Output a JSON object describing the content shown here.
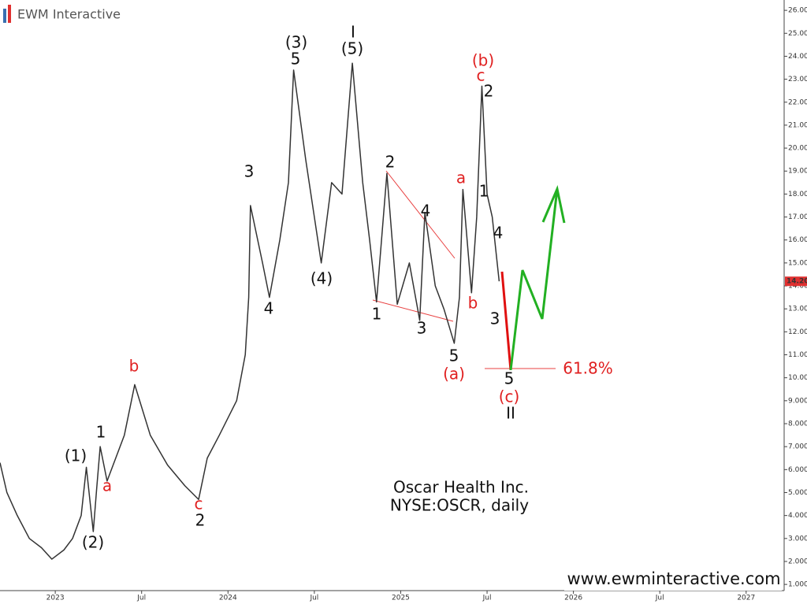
{
  "brand": "EWM Interactive",
  "chart_data": {
    "type": "line",
    "title": "Oscar Health Inc.",
    "subtitle": "NYSE:OSCR, daily",
    "source": "www.ewminteractive.com",
    "x": [
      2022.68,
      2022.72,
      2022.78,
      2022.85,
      2022.92,
      2022.98,
      2023.05,
      2023.1,
      2023.15,
      2023.18,
      2023.22,
      2023.24,
      2023.26,
      2023.3,
      2023.4,
      2023.46,
      2023.55,
      2023.65,
      2023.75,
      2023.83,
      2023.88,
      2023.95,
      2024.05,
      2024.1,
      2024.12,
      2024.13,
      2024.2,
      2024.24,
      2024.3,
      2024.35,
      2024.38,
      2024.45,
      2024.5,
      2024.54,
      2024.6,
      2024.66,
      2024.72,
      2024.78,
      2024.82,
      2024.86,
      2024.92,
      2024.98,
      2025.05,
      2025.11,
      2025.14,
      2025.2,
      2025.25,
      2025.31,
      2025.34,
      2025.36,
      2025.41,
      2025.44,
      2025.47,
      2025.5,
      2025.53,
      2025.57
    ],
    "values": [
      6.3,
      5.0,
      4.0,
      3.0,
      2.6,
      2.1,
      2.5,
      3.0,
      4.0,
      6.1,
      3.3,
      5.2,
      7.0,
      5.5,
      7.5,
      9.7,
      7.5,
      6.2,
      5.3,
      4.7,
      6.5,
      7.5,
      9.0,
      11.0,
      13.5,
      17.5,
      15.0,
      13.5,
      16.0,
      18.5,
      23.4,
      19.5,
      17.0,
      15.0,
      18.5,
      18.0,
      23.7,
      18.5,
      16.0,
      13.3,
      18.9,
      13.2,
      15.0,
      12.5,
      17.2,
      14.0,
      13.0,
      11.5,
      13.5,
      18.2,
      13.7,
      17.0,
      22.7,
      18.0,
      17.0,
      14.2
    ],
    "color": "#333333",
    "xlim": [
      2022.68,
      2027.22
    ],
    "xticks": [
      {
        "value": 2023,
        "label": "2023"
      },
      {
        "value": 2023.5,
        "label": "Jul"
      },
      {
        "value": 2024,
        "label": "2024"
      },
      {
        "value": 2024.5,
        "label": "Jul"
      },
      {
        "value": 2025,
        "label": "2025"
      },
      {
        "value": 2025.5,
        "label": "Jul"
      },
      {
        "value": 2026,
        "label": "2026"
      },
      {
        "value": 2026.5,
        "label": "Jul"
      },
      {
        "value": 2027,
        "label": "2027"
      }
    ],
    "ylim": [
      0.73,
      26.45
    ],
    "yticks": [
      {
        "value": 1,
        "label": "1.000"
      },
      {
        "value": 2,
        "label": "2.000"
      },
      {
        "value": 3,
        "label": "3.000"
      },
      {
        "value": 4,
        "label": "4.000"
      },
      {
        "value": 5,
        "label": "5.000"
      },
      {
        "value": 6,
        "label": "6.000"
      },
      {
        "value": 7,
        "label": "7.000"
      },
      {
        "value": 8,
        "label": "8.000"
      },
      {
        "value": 9,
        "label": "9.000"
      },
      {
        "value": 10,
        "label": "10.000"
      },
      {
        "value": 11,
        "label": "11.000"
      },
      {
        "value": 12,
        "label": "12.000"
      },
      {
        "value": 13,
        "label": "13.000"
      },
      {
        "value": 14,
        "label": "14.000"
      },
      {
        "value": 15,
        "label": "15.000"
      },
      {
        "value": 16,
        "label": "16.000"
      },
      {
        "value": 17,
        "label": "17.000"
      },
      {
        "value": 18,
        "label": "18.000"
      },
      {
        "value": 19,
        "label": "19.000"
      },
      {
        "value": 20,
        "label": "20.000"
      },
      {
        "value": 21,
        "label": "21.000"
      },
      {
        "value": 22,
        "label": "22.000"
      },
      {
        "value": 23,
        "label": "23.000"
      },
      {
        "value": 24,
        "label": "24.000"
      },
      {
        "value": 25,
        "label": "25.000"
      },
      {
        "value": 26,
        "label": "26.000"
      }
    ],
    "last_price": {
      "value": 14.2,
      "label": "14.20"
    },
    "grid": false,
    "annotations": [
      {
        "text": "(1)",
        "color": "#111111"
      },
      {
        "text": "(2)",
        "color": "#111111"
      },
      {
        "text": "1",
        "color": "#111111"
      },
      {
        "text": "2",
        "color": "#111111"
      },
      {
        "text": "3",
        "color": "#111111"
      },
      {
        "text": "4",
        "color": "#111111"
      },
      {
        "text": "(3)",
        "color": "#111111"
      },
      {
        "text": "5",
        "color": "#111111"
      },
      {
        "text": "(4)",
        "color": "#111111"
      },
      {
        "text": "I",
        "color": "#111111"
      },
      {
        "text": "(5)",
        "color": "#111111"
      },
      {
        "text": "1",
        "color": "#111111"
      },
      {
        "text": "2",
        "color": "#111111"
      },
      {
        "text": "3",
        "color": "#111111"
      },
      {
        "text": "4",
        "color": "#111111"
      },
      {
        "text": "5",
        "color": "#111111"
      },
      {
        "text": "2",
        "color": "#111111"
      },
      {
        "text": "1",
        "color": "#111111"
      },
      {
        "text": "4",
        "color": "#111111"
      },
      {
        "text": "3",
        "color": "#111111"
      },
      {
        "text": "5",
        "color": "#111111"
      },
      {
        "text": "II",
        "color": "#111111"
      },
      {
        "text": "a",
        "color": "#e02020"
      },
      {
        "text": "b",
        "color": "#e02020"
      },
      {
        "text": "c",
        "color": "#e02020"
      },
      {
        "text": "a",
        "color": "#e02020"
      },
      {
        "text": "b",
        "color": "#e02020"
      },
      {
        "text": "c",
        "color": "#e02020"
      },
      {
        "text": "(b)",
        "color": "#e02020"
      },
      {
        "text": "(a)",
        "color": "#e02020"
      },
      {
        "text": "(c)",
        "color": "#e02020"
      },
      {
        "text": "61.8%",
        "color": "#e02020"
      }
    ]
  }
}
